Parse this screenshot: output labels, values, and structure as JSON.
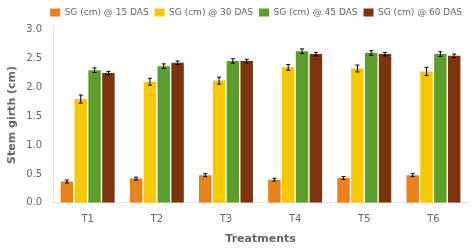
{
  "chart_data": {
    "type": "bar",
    "xlabel": "Treatments",
    "ylabel": "Stem girth (cm)",
    "categories": [
      "T1",
      "T2",
      "T3",
      "T4",
      "T5",
      "T6"
    ],
    "series": [
      {
        "name": "SG (cm) @ 15 DAS",
        "color": "#E8821A",
        "values": [
          0.37,
          0.42,
          0.48,
          0.4,
          0.43,
          0.48
        ],
        "errors": [
          0.025,
          0.025,
          0.025,
          0.025,
          0.025,
          0.025
        ]
      },
      {
        "name": "SG (cm) @ 30 DAS",
        "color": "#F5C800",
        "values": [
          1.8,
          2.1,
          2.12,
          2.35,
          2.33,
          2.28
        ],
        "errors": [
          0.07,
          0.06,
          0.06,
          0.05,
          0.06,
          0.07
        ]
      },
      {
        "name": "SG (cm) @ 45 DAS",
        "color": "#5B9E2D",
        "values": [
          2.3,
          2.37,
          2.46,
          2.63,
          2.6,
          2.58
        ],
        "errors": [
          0.04,
          0.04,
          0.04,
          0.04,
          0.04,
          0.04
        ]
      },
      {
        "name": "SG (cm) @ 60 DAS",
        "color": "#7B3310",
        "values": [
          2.25,
          2.43,
          2.46,
          2.58,
          2.58,
          2.55
        ],
        "errors": [
          0.03,
          0.03,
          0.03,
          0.03,
          0.03,
          0.03
        ]
      }
    ],
    "ylim": [
      0,
      3.05
    ],
    "yticks": [
      {
        "value": 0,
        "label": "0.0"
      },
      0.5,
      {
        "value": 1.0,
        "label": "1.0"
      },
      1.5,
      {
        "value": 2.0,
        "label": "2.0"
      },
      2.5,
      {
        "value": 3.0,
        "label": "3.0"
      }
    ],
    "grid": false,
    "legend": "upper right"
  }
}
